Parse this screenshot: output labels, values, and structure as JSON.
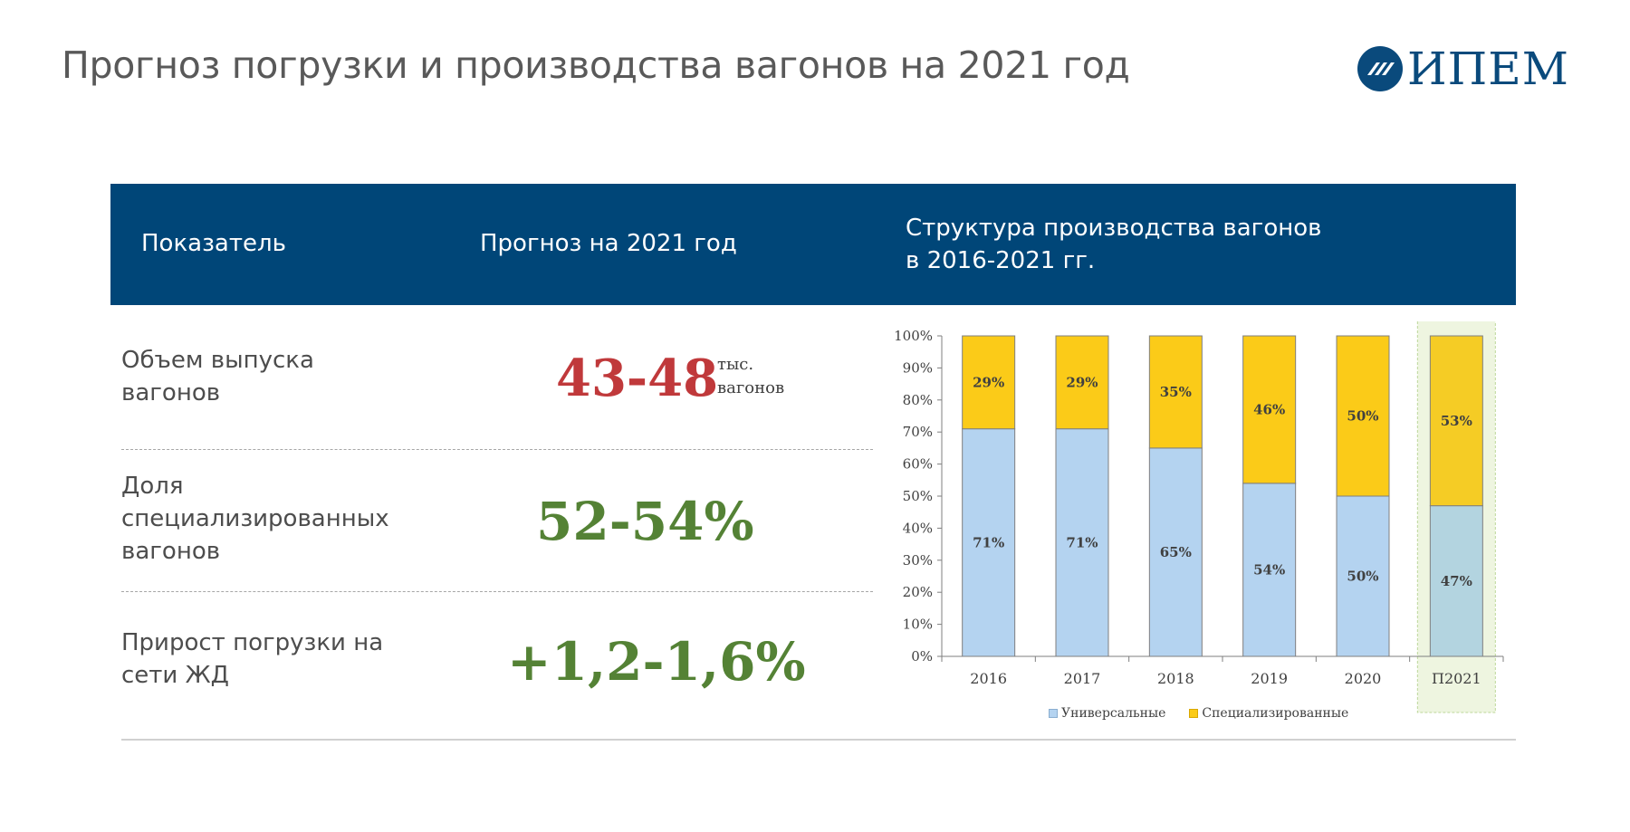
{
  "header": {
    "title": "Прогноз погрузки и производства вагонов на 2021 год",
    "logo_text": "ИПЕМ"
  },
  "table": {
    "col1": "Показатель",
    "col2": "Прогноз на 2021 год",
    "col3_line1": "Структура производства вагонов",
    "col3_line2": "в 2016-2021 гг."
  },
  "rows": [
    {
      "label_line1": "Объем выпуска",
      "label_line2": "вагонов",
      "label_line3": "",
      "value": "43-48",
      "unit_line1": "тыс.",
      "unit_line2": "вагонов"
    },
    {
      "label_line1": "Доля",
      "label_line2": "специализированных",
      "label_line3": "вагонов",
      "value": "52-54%"
    },
    {
      "label_line1": "Прирост погрузки на",
      "label_line2": "сети ЖД",
      "label_line3": "",
      "value": "+1,2-1,6%"
    }
  ],
  "colors": {
    "header_band": "#004678",
    "universal": "#b4d3f0",
    "universal_forecast": "#b3d4e0",
    "specialized": "#fbcb18",
    "specialized_forecast": "#f5cc25",
    "value_red": "#c0393b",
    "value_green": "#548235",
    "forecast_highlight": "#eef5e0"
  },
  "chart_data": {
    "type": "bar",
    "stacked": true,
    "categories": [
      "2016",
      "2017",
      "2018",
      "2019",
      "2020",
      "П2021"
    ],
    "series": [
      {
        "name": "Универсальные",
        "values": [
          71,
          71,
          65,
          54,
          50,
          47
        ],
        "labels": [
          "71%",
          "71%",
          "65%",
          "54%",
          "50%",
          "47%"
        ]
      },
      {
        "name": "Специализированные",
        "values": [
          29,
          29,
          35,
          46,
          50,
          53
        ],
        "labels": [
          "29%",
          "29%",
          "35%",
          "46%",
          "50%",
          "53%"
        ]
      }
    ],
    "y_ticks": [
      "0%",
      "10%",
      "20%",
      "30%",
      "40%",
      "50%",
      "60%",
      "70%",
      "80%",
      "90%",
      "100%"
    ],
    "ylim": [
      0,
      100
    ],
    "highlighted_category": "П2021",
    "legend_position": "bottom",
    "grid": false
  }
}
